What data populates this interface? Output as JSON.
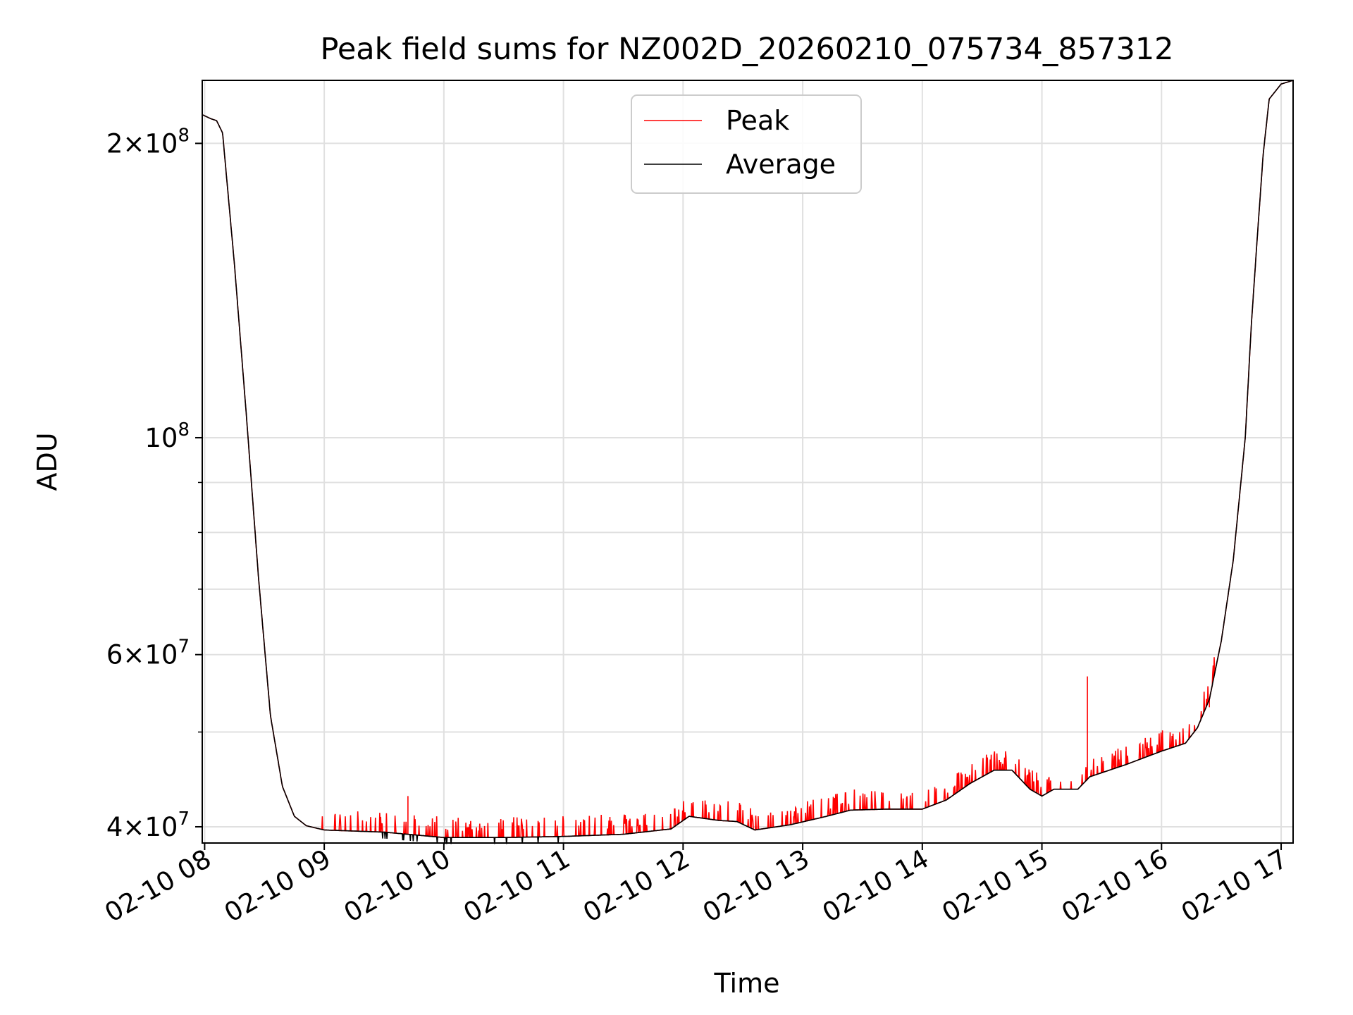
{
  "chart_data": {
    "type": "line",
    "title": "Peak field sums for NZ002D_20260210_075734_857312",
    "xlabel": "Time",
    "ylabel": "ADU",
    "yscale": "log",
    "grid": true,
    "legend_position": "upper-center",
    "xlim_hours": [
      7.98,
      17.1
    ],
    "ylim": [
      38500000,
      232000000
    ],
    "x_ticks": [
      {
        "value": 8,
        "label": "02-10 08"
      },
      {
        "value": 9,
        "label": "02-10 09"
      },
      {
        "value": 10,
        "label": "02-10 10"
      },
      {
        "value": 11,
        "label": "02-10 11"
      },
      {
        "value": 12,
        "label": "02-10 12"
      },
      {
        "value": 13,
        "label": "02-10 13"
      },
      {
        "value": 14,
        "label": "02-10 14"
      },
      {
        "value": 15,
        "label": "02-10 15"
      },
      {
        "value": 16,
        "label": "02-10 16"
      },
      {
        "value": 17,
        "label": "02-10 17"
      }
    ],
    "y_major_ticks": [
      {
        "value": 40000000,
        "mantissa": "4",
        "exponent": "7"
      },
      {
        "value": 60000000,
        "mantissa": "6",
        "exponent": "7"
      },
      {
        "value": 100000000,
        "mantissa": "",
        "exponent": "8"
      },
      {
        "value": 200000000,
        "mantissa": "2",
        "exponent": "8"
      }
    ],
    "y_minor_ticks": [
      50000000,
      70000000,
      80000000,
      90000000
    ],
    "series": [
      {
        "name": "Peak",
        "color": "#ff0000",
        "style": "spiky",
        "spikes": [
          {
            "x": 9.7,
            "y": 43000000
          },
          {
            "x": 15.38,
            "y": 57000000
          },
          {
            "x": 16.4,
            "y": 53000000
          }
        ]
      },
      {
        "name": "Average",
        "color": "#000000",
        "x": [
          7.98,
          8.05,
          8.1,
          8.15,
          8.25,
          8.35,
          8.45,
          8.55,
          8.65,
          8.75,
          8.85,
          9.0,
          9.5,
          10.0,
          10.5,
          11.0,
          11.5,
          11.9,
          12.05,
          12.3,
          12.45,
          12.6,
          12.9,
          13.2,
          13.4,
          13.7,
          14.0,
          14.2,
          14.4,
          14.6,
          14.75,
          14.9,
          15.0,
          15.1,
          15.3,
          15.4,
          15.7,
          16.0,
          16.2,
          16.3,
          16.4,
          16.5,
          16.6,
          16.7,
          16.75,
          16.8,
          16.85,
          16.9,
          17.0,
          17.1
        ],
        "y": [
          214000000,
          212000000,
          211000000,
          205000000,
          150000000,
          105000000,
          72000000,
          52000000,
          44000000,
          41000000,
          40100000,
          39700000,
          39500000,
          39000000,
          39000000,
          39100000,
          39300000,
          39800000,
          41000000,
          40600000,
          40500000,
          39700000,
          40200000,
          41000000,
          41600000,
          41700000,
          41700000,
          42600000,
          44300000,
          45700000,
          45700000,
          43700000,
          43000000,
          43700000,
          43700000,
          45000000,
          46300000,
          47800000,
          48700000,
          50500000,
          54000000,
          62000000,
          75000000,
          100000000,
          130000000,
          160000000,
          195000000,
          222000000,
          230000000,
          232000000
        ]
      }
    ]
  }
}
